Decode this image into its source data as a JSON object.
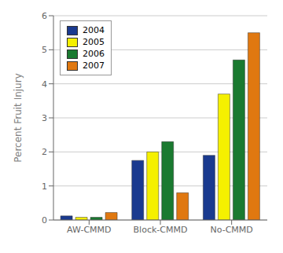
{
  "chart_data": {
    "type": "bar",
    "categories": [
      "AW-CMMD",
      "Block-CMMD",
      "No-CMMD"
    ],
    "series": [
      {
        "name": "2004",
        "color": "#1a3a8f",
        "values": [
          0.12,
          1.75,
          1.9
        ]
      },
      {
        "name": "2005",
        "color": "#f5f000",
        "values": [
          0.08,
          2.0,
          3.7
        ]
      },
      {
        "name": "2006",
        "color": "#1a7a30",
        "values": [
          0.08,
          2.3,
          4.7
        ]
      },
      {
        "name": "2007",
        "color": "#e07810",
        "values": [
          0.22,
          0.8,
          5.5
        ]
      }
    ],
    "ylabel": "Percent Fruit Injury",
    "ylim": [
      0,
      6
    ],
    "yticks": [
      0,
      1,
      2,
      3,
      4,
      5,
      6
    ],
    "grid": true,
    "legend": "upper left"
  }
}
